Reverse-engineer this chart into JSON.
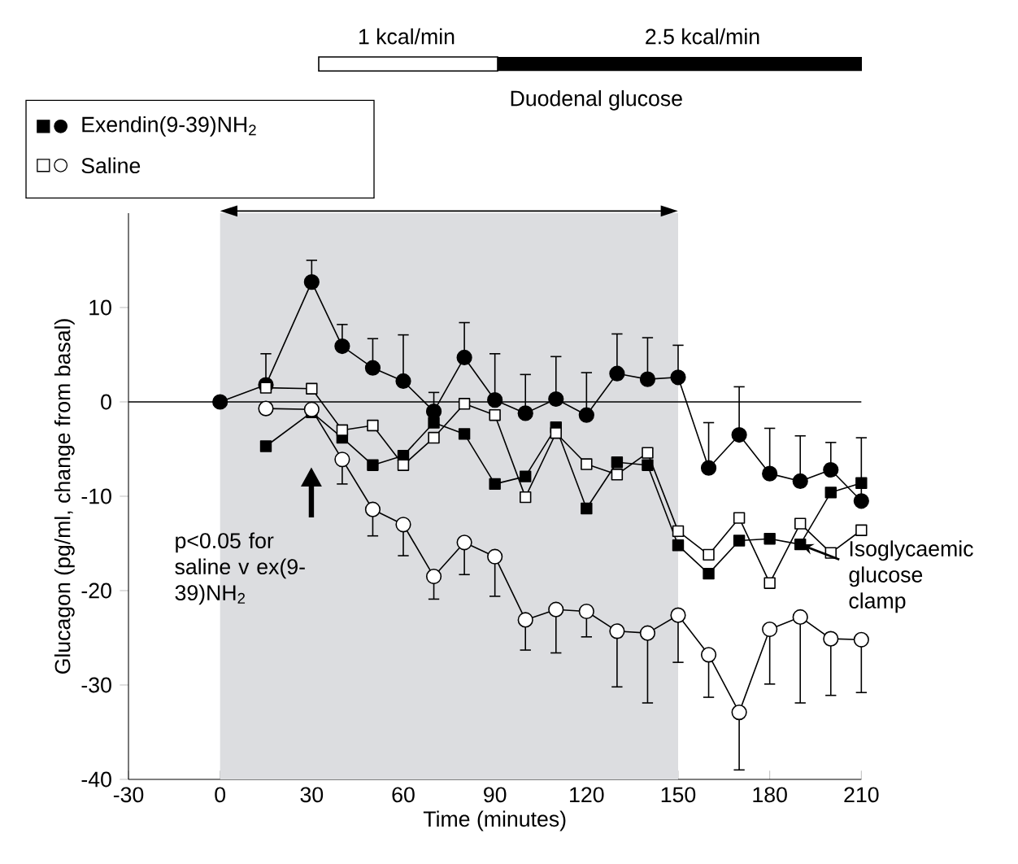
{
  "chart_data": {
    "type": "line",
    "xlabel": "Time (minutes)",
    "ylabel": "Glucagon (pg/ml, change from basal)",
    "x": [
      0,
      15,
      30,
      40,
      50,
      60,
      70,
      80,
      90,
      100,
      110,
      120,
      130,
      140,
      150,
      160,
      170,
      180,
      190,
      200,
      210
    ],
    "xlim": [
      -30,
      210
    ],
    "xticks": [
      -30,
      0,
      30,
      60,
      90,
      120,
      150,
      180,
      210
    ],
    "ylim": [
      -40,
      20
    ],
    "yticks": [
      -40,
      -30,
      -20,
      -10,
      0,
      10
    ],
    "legend": "top left",
    "line_style": "solid",
    "series": [
      {
        "name": "Exendin(9-39)NH$_{2}$",
        "color": "#000000",
        "marker": "circle",
        "values": [
          0,
          1.8,
          12.7,
          5.9,
          3.6,
          2.2,
          -1.0,
          4.7,
          0.2,
          -1.2,
          0.3,
          -1.4,
          3.0,
          2.4,
          2.6,
          -7.0,
          -3.5,
          -7.6,
          -8.4,
          -7.2,
          -10.5
        ],
        "errors": [
          null,
          [
            1.8,
            5.1
          ],
          [
            12.7,
            15.0
          ],
          [
            5.9,
            8.2
          ],
          [
            3.6,
            6.7
          ],
          [
            2.2,
            7.1
          ],
          [
            -1.0,
            1.0
          ],
          [
            4.7,
            8.4
          ],
          [
            0.2,
            5.1
          ],
          [
            -1.2,
            2.9
          ],
          [
            0.3,
            4.8
          ],
          [
            -1.4,
            3.1
          ],
          [
            3.0,
            7.2
          ],
          [
            2.4,
            6.8
          ],
          [
            2.6,
            6.0
          ],
          [
            -7.0,
            -2.2
          ],
          [
            -3.5,
            1.6
          ],
          [
            -7.6,
            -2.8
          ],
          [
            -8.4,
            -3.6
          ],
          [
            -7.2,
            -4.3
          ],
          [
            -10.5,
            -3.8
          ]
        ]
      },
      {
        "color": "#000000",
        "marker": "square",
        "values": [
          null,
          -4.7,
          -1.1,
          -3.8,
          -6.7,
          -5.7,
          -2.2,
          -3.4,
          -8.7,
          -7.9,
          -2.7,
          -11.3,
          -6.4,
          -6.7,
          -15.2,
          -18.2,
          -14.7,
          -14.5,
          -15.1,
          -9.6,
          -8.6
        ]
      },
      {
        "name": "Saline",
        "color": "#ffffff",
        "marker": "circle",
        "values": [
          null,
          -0.7,
          -0.8,
          -6.1,
          -11.4,
          -13.0,
          -18.5,
          -14.9,
          -16.4,
          -23.1,
          -22.0,
          -22.2,
          -24.3,
          -24.5,
          -22.6,
          -26.8,
          -32.9,
          -24.1,
          -22.8,
          -25.1,
          -25.2
        ],
        "errors": [
          null,
          null,
          null,
          [
            -8.7,
            -6.1
          ],
          [
            -14.2,
            -11.4
          ],
          [
            -16.3,
            -13.0
          ],
          [
            -20.9,
            -18.5
          ],
          [
            -18.3,
            -14.9
          ],
          [
            -20.6,
            -16.4
          ],
          [
            -26.3,
            -23.1
          ],
          [
            -26.6,
            -22.0
          ],
          [
            -24.9,
            -22.2
          ],
          [
            -30.2,
            -24.3
          ],
          [
            -31.9,
            -24.5
          ],
          [
            -27.6,
            -22.6
          ],
          [
            -31.3,
            -26.8
          ],
          [
            -39.0,
            -32.9
          ],
          [
            -29.9,
            -24.1
          ],
          [
            -31.9,
            -22.8
          ],
          [
            -31.1,
            -25.1
          ],
          [
            -30.8,
            -25.2
          ]
        ]
      },
      {
        "color": "#ffffff",
        "marker": "square",
        "values": [
          null,
          1.5,
          1.4,
          -3.0,
          -2.5,
          -6.7,
          -3.8,
          -0.2,
          -1.4,
          -10.1,
          -3.3,
          -6.6,
          -7.7,
          -5.4,
          -13.7,
          -16.2,
          -12.3,
          -19.2,
          -12.9,
          -16.0,
          -13.6
        ]
      }
    ],
    "ref_lines": [
      {
        "axis": "y",
        "value": 0
      }
    ],
    "bands": [
      {
        "axis": "x",
        "from": 0,
        "to": 150,
        "color": "#dcdde0"
      }
    ],
    "annotations": [
      "1 kcal/min",
      "2.5 kcal/min",
      "Duodenal glucose",
      "p<0.05 for saline v ex(9-39)NH$_{2}$",
      {
        "text": "Isoglycaemic glucose clamp",
        "x": 190,
        "y": -15.1
      }
    ]
  }
}
